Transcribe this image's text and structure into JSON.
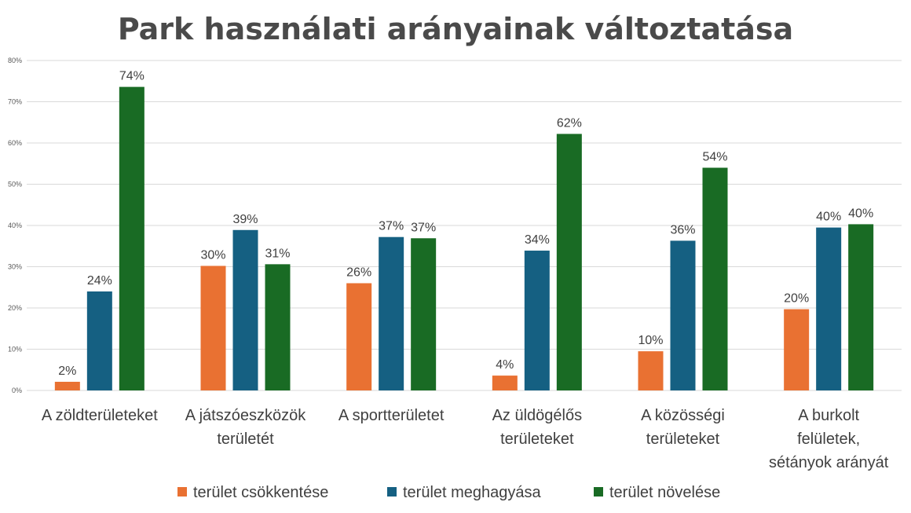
{
  "chart_data": {
    "type": "bar",
    "title": "Park használati arányainak változtatása",
    "categories": [
      [
        "A zöldterületeket"
      ],
      [
        "A játszóeszközök",
        "területét"
      ],
      [
        "A sportterületet"
      ],
      [
        "Az üldögélős",
        "területeket"
      ],
      [
        "A közösségi",
        "területeket"
      ],
      [
        "A burkolt",
        "felületek,",
        "sétányok arányát"
      ]
    ],
    "series": [
      {
        "name": "terület csökkentése",
        "color": "#e97132",
        "values": [
          2,
          30,
          26,
          4,
          10,
          20
        ],
        "plot_values": [
          2.1,
          30.2,
          26.0,
          3.6,
          9.5,
          19.7
        ]
      },
      {
        "name": "terület meghagyása",
        "color": "#156082",
        "values": [
          24,
          39,
          37,
          34,
          36,
          40
        ],
        "plot_values": [
          24.0,
          38.9,
          37.2,
          33.9,
          36.3,
          39.5
        ]
      },
      {
        "name": "terület növelése",
        "color": "#196b24",
        "values": [
          74,
          31,
          37,
          62,
          54,
          40
        ],
        "plot_values": [
          73.6,
          30.6,
          36.9,
          62.2,
          54.0,
          40.3
        ]
      }
    ],
    "value_suffix": "%",
    "ylim": [
      0,
      80
    ],
    "yticks": [
      "0%",
      "10%",
      "20%",
      "30%",
      "40%",
      "50%",
      "60%",
      "70%",
      "80%"
    ],
    "xlabel": "",
    "ylabel": "",
    "grid": true,
    "legend_position": "bottom"
  }
}
